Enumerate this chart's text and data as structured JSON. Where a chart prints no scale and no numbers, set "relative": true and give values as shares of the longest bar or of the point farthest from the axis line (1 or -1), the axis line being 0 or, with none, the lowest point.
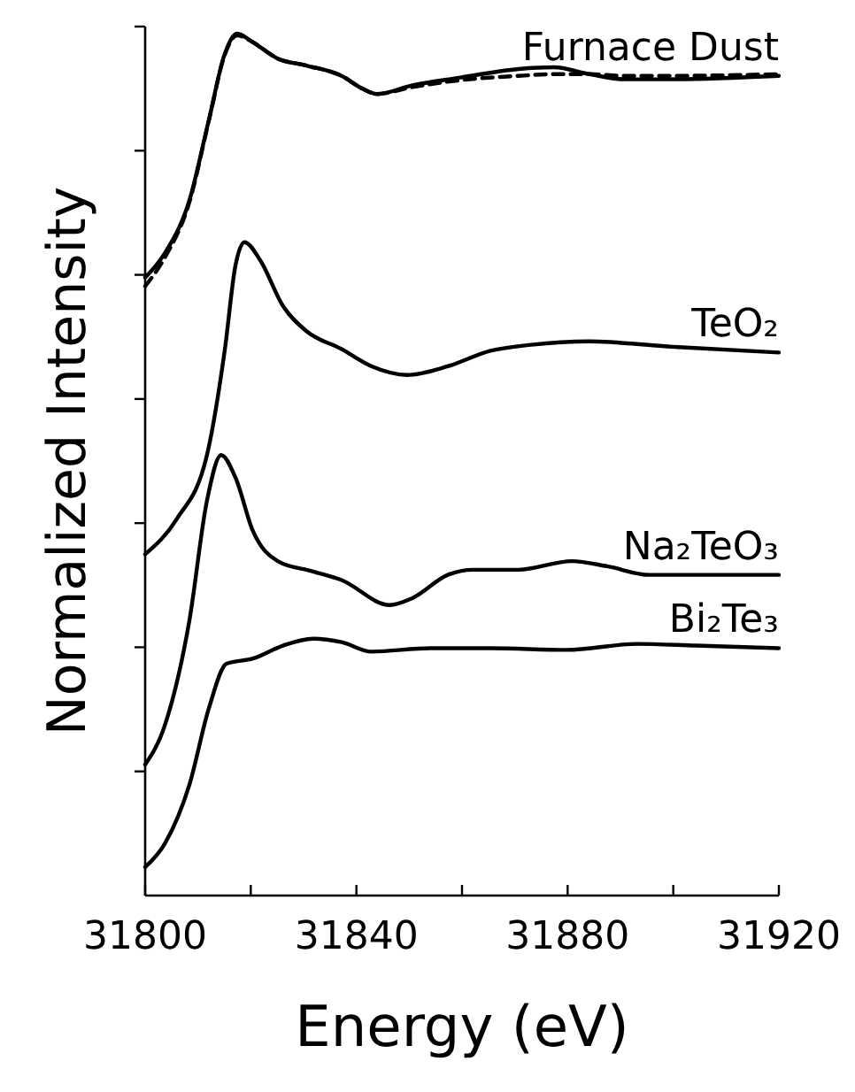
{
  "chart_data": {
    "type": "line",
    "relative": true,
    "xlabel": "Energy (eV)",
    "ylabel": "Normalized Intensity",
    "xlim": [
      31800,
      31920
    ],
    "xticks": [
      31800,
      {
        "value": 31820,
        "label": null
      },
      31840,
      {
        "value": 31860,
        "label": null
      },
      31880,
      {
        "value": 31900,
        "label": null
      },
      31920
    ],
    "marker": "none",
    "series": [
      {
        "name": "Furnace Dust",
        "color": "#000000",
        "line_style": "solid",
        "x": [
          31800,
          31803.7,
          31808.4,
          31812.1,
          31815.1,
          31817.4,
          31820.4,
          31825.1,
          31830.5,
          31837.2,
          31841.2,
          31843.9,
          31850.6,
          31859.7,
          31870.7,
          31877.4,
          31884.1,
          31890.8,
          31898.9,
          31920
        ],
        "values": [
          0.717,
          0.745,
          0.807,
          0.901,
          0.977,
          1.0,
          0.99,
          0.971,
          0.963,
          0.951,
          0.936,
          0.93,
          0.94,
          0.949,
          0.959,
          0.961,
          0.953,
          0.947,
          0.947,
          0.951
        ]
      },
      {
        "color": "#000000",
        "line_style": "dashed",
        "x": [
          31800,
          31803.7,
          31808.4,
          31812.1,
          31815.1,
          31817.4,
          31820.4,
          31825.1,
          31830.5,
          31837.2,
          31841.2,
          31843.9,
          31850.6,
          31859.7,
          31870.7,
          31877.4,
          31884.1,
          31890.8,
          31898.9,
          31920
        ],
        "values": [
          0.707,
          0.74,
          0.805,
          0.9,
          0.976,
          0.998,
          0.99,
          0.971,
          0.963,
          0.951,
          0.936,
          0.93,
          0.938,
          0.946,
          0.951,
          0.953,
          0.953,
          0.951,
          0.951,
          0.953
        ]
      },
      {
        "name": "TeO₂",
        "color": "#000000",
        "line_style": "solid",
        "x": [
          31800,
          31806,
          31811.7,
          31815.1,
          31817.1,
          31818.8,
          31821.8,
          31826.1,
          31830.5,
          31837.2,
          31842.9,
          31849.6,
          31857.3,
          31865.4,
          31873.1,
          31884.1,
          31898.9,
          31920
        ],
        "values": [
          0.396,
          0.437,
          0.511,
          0.634,
          0.731,
          0.758,
          0.737,
          0.684,
          0.655,
          0.634,
          0.614,
          0.604,
          0.614,
          0.632,
          0.639,
          0.643,
          0.637,
          0.63
        ]
      },
      {
        "name": "Na₂TeO₃",
        "color": "#000000",
        "line_style": "solid",
        "x": [
          31800,
          31803.7,
          31808.4,
          31811.7,
          31814.4,
          31817.1,
          31820.4,
          31825.1,
          31831.8,
          31837.2,
          31846.3,
          31850.6,
          31857.3,
          31862,
          31870.7,
          31880.8,
          31887.5,
          31895.5,
          31920
        ],
        "values": [
          0.152,
          0.197,
          0.32,
          0.458,
          0.511,
          0.485,
          0.423,
          0.388,
          0.376,
          0.366,
          0.337,
          0.345,
          0.372,
          0.378,
          0.378,
          0.388,
          0.382,
          0.372,
          0.372
        ]
      },
      {
        "name": "Bi₂Te₃",
        "color": "#000000",
        "line_style": "solid",
        "x": [
          31800,
          31803.7,
          31808.4,
          31812.1,
          31815.4,
          31820.4,
          31826.1,
          31831.8,
          31837.2,
          31842.9,
          31854,
          31865.4,
          31879.8,
          31893.2,
          31904.3,
          31920
        ],
        "values": [
          0.033,
          0.06,
          0.129,
          0.218,
          0.269,
          0.275,
          0.29,
          0.298,
          0.294,
          0.283,
          0.287,
          0.287,
          0.285,
          0.292,
          0.29,
          0.287
        ]
      }
    ]
  }
}
